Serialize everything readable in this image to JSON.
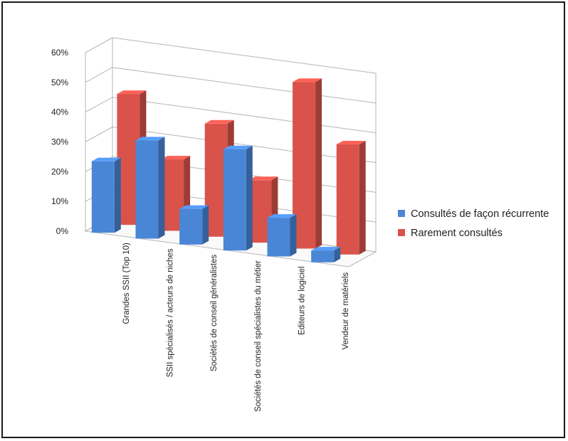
{
  "chart_data": {
    "type": "bar",
    "categories": [
      "Grandes SSII (Top 10)",
      "SSII spécialisés / acteurs de niches",
      "Sociétés de conseil généralistes",
      "Sociétés de conseil spécialistes du métier",
      "Editeurs de logiciel",
      "Vendeur de matériels"
    ],
    "series": [
      {
        "name": "Consultés de façon récurrente",
        "values": [
          24,
          33,
          12,
          34,
          13,
          4
        ]
      },
      {
        "name": "Rarement consultés",
        "values": [
          44,
          24,
          38,
          21,
          56,
          37
        ]
      }
    ],
    "yticks": [
      "0%",
      "10%",
      "20%",
      "30%",
      "40%",
      "50%",
      "60%"
    ],
    "ylim": [
      0,
      60
    ],
    "unit": "%",
    "grid": true,
    "legend_position": "right",
    "projection": "3d-clustered",
    "colors": {
      "series1": "#4a86d6",
      "series2": "#d9534a",
      "grid": "#b5b5b5",
      "frame": "#1a1a1a"
    }
  }
}
